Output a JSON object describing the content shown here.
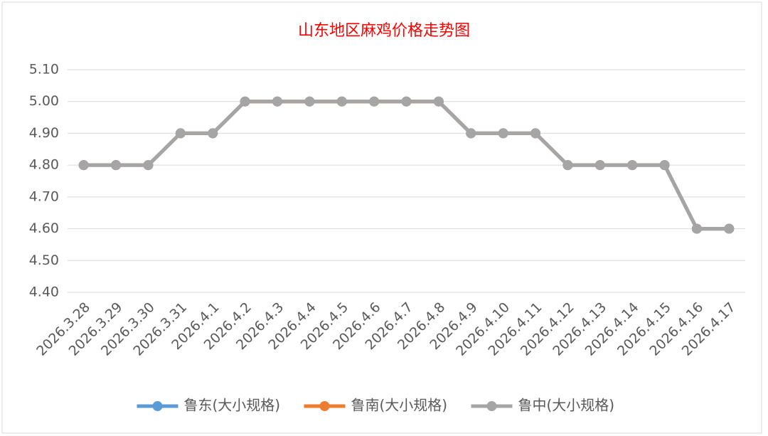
{
  "chart_data": {
    "type": "line",
    "title": "山东地区麻鸡价格走势图",
    "categories": [
      "2026.3.28",
      "2026.3.29",
      "2026.3.30",
      "2026.3.31",
      "2026.4.1",
      "2026.4.2",
      "2026.4.3",
      "2026.4.4",
      "2026.4.5",
      "2026.4.6",
      "2026.4.7",
      "2026.4.8",
      "2026.4.9",
      "2026.4.10",
      "2026.4.11",
      "2026.4.12",
      "2026.4.13",
      "2026.4.14",
      "2026.4.15",
      "2026.4.16",
      "2026.4.17"
    ],
    "series": [
      {
        "name": "鲁东(大小规格)",
        "color": "#5b9bd5",
        "values": [
          4.8,
          4.8,
          4.8,
          4.9,
          4.9,
          5.0,
          5.0,
          5.0,
          5.0,
          5.0,
          5.0,
          5.0,
          4.9,
          4.9,
          4.9,
          4.8,
          4.8,
          4.8,
          4.8,
          4.6,
          4.6
        ]
      },
      {
        "name": "鲁南(大小规格)",
        "color": "#ed7d31",
        "values": [
          4.8,
          4.8,
          4.8,
          4.9,
          4.9,
          5.0,
          5.0,
          5.0,
          5.0,
          5.0,
          5.0,
          5.0,
          4.9,
          4.9,
          4.9,
          4.8,
          4.8,
          4.8,
          4.8,
          4.6,
          4.6
        ]
      },
      {
        "name": "鲁中(大小规格)",
        "color": "#a5a5a5",
        "values": [
          4.8,
          4.8,
          4.8,
          4.9,
          4.9,
          5.0,
          5.0,
          5.0,
          5.0,
          5.0,
          5.0,
          5.0,
          4.9,
          4.9,
          4.9,
          4.8,
          4.8,
          4.8,
          4.8,
          4.6,
          4.6
        ]
      }
    ],
    "ylim": [
      4.4,
      5.1
    ],
    "yticks": [
      {
        "value": 4.4,
        "label": "4.40"
      },
      {
        "value": 4.5,
        "label": "4.50"
      },
      {
        "value": 4.6,
        "label": "4.60"
      },
      {
        "value": 4.7,
        "label": "4.70"
      },
      {
        "value": 4.8,
        "label": "4.80"
      },
      {
        "value": 4.9,
        "label": "4.90"
      },
      {
        "value": 5.0,
        "label": "5.00"
      },
      {
        "value": 5.1,
        "label": "5.10"
      }
    ],
    "grid": true,
    "legend": "bottom"
  }
}
